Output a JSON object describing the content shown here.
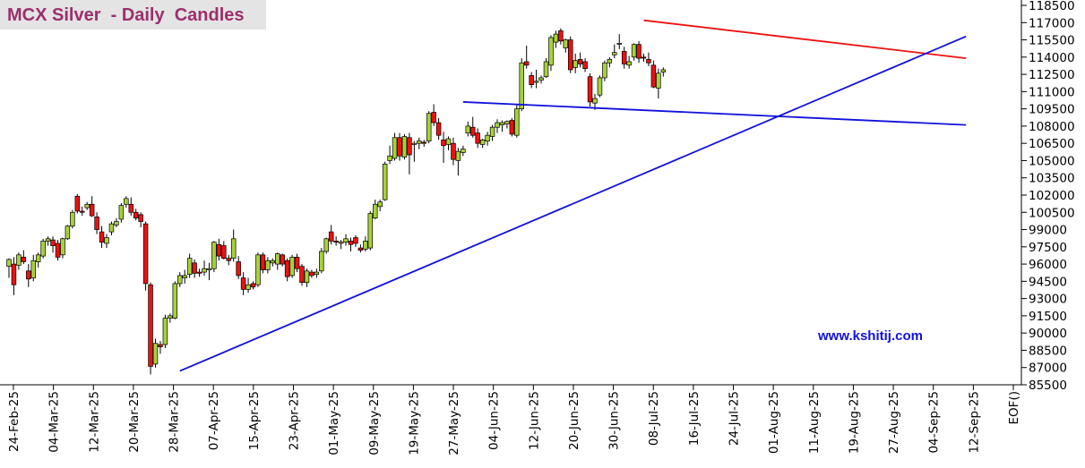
{
  "chart_data": {
    "type": "candlestick",
    "title": "MCX Silver  - Daily  Candles",
    "watermark": "www.kshitij.com",
    "ylim": [
      85500,
      118500
    ],
    "y_ticks": [
      85500,
      87000,
      88500,
      90000,
      91500,
      93000,
      94500,
      96000,
      97500,
      99000,
      100500,
      102000,
      103500,
      105000,
      106500,
      108000,
      109500,
      111000,
      112500,
      114000,
      115500,
      117000,
      118500
    ],
    "x_tick_labels": [
      "24-Feb-25",
      "04-Mar-25",
      "12-Mar-25",
      "20-Mar-25",
      "28-Mar-25",
      "07-Apr-25",
      "15-Apr-25",
      "23-Apr-25",
      "01-May-25",
      "09-May-25",
      "19-May-25",
      "27-May-25",
      "04-Jun-25",
      "12-Jun-25",
      "20-Jun-25",
      "30-Jun-25",
      "08-Jul-25",
      "16-Jul-25",
      "24-Jul-25",
      "01-Aug-25",
      "11-Aug-25",
      "19-Aug-25",
      "27-Aug-25",
      "04-Sep-25",
      "12-Sep-25",
      "EOF()"
    ],
    "colors": {
      "up": "#a6d23a",
      "down": "#ee1111",
      "outline": "#000000",
      "resistance": "#ee1111",
      "channel": "#1111dd",
      "grid": "#000000"
    },
    "trendlines": [
      {
        "color": "red",
        "from": {
          "bar": 130,
          "price": 117200
        },
        "to": {
          "bar": 196,
          "price": 113900
        }
      },
      {
        "color": "blue",
        "from": {
          "bar": 93,
          "price": 110100
        },
        "to": {
          "bar": 196,
          "price": 108100
        }
      },
      {
        "color": "blue",
        "from": {
          "bar": 35,
          "price": 86700
        },
        "to": {
          "bar": 196,
          "price": 115800
        }
      }
    ],
    "candles": [
      {
        "o": 95800,
        "h": 96500,
        "l": 94800,
        "c": 96400
      },
      {
        "o": 96000,
        "h": 96600,
        "l": 93300,
        "c": 94200
      },
      {
        "o": 95900,
        "h": 97000,
        "l": 95500,
        "c": 96800
      },
      {
        "o": 96600,
        "h": 97200,
        "l": 96000,
        "c": 96200
      },
      {
        "o": 95400,
        "h": 96000,
        "l": 94000,
        "c": 94700
      },
      {
        "o": 94800,
        "h": 96800,
        "l": 94500,
        "c": 96300
      },
      {
        "o": 96200,
        "h": 97000,
        "l": 95700,
        "c": 96800
      },
      {
        "o": 96700,
        "h": 98200,
        "l": 96500,
        "c": 98000
      },
      {
        "o": 98000,
        "h": 98400,
        "l": 97600,
        "c": 98200
      },
      {
        "o": 98100,
        "h": 98400,
        "l": 97000,
        "c": 97600
      },
      {
        "o": 97800,
        "h": 98100,
        "l": 96300,
        "c": 96600
      },
      {
        "o": 96800,
        "h": 98300,
        "l": 96500,
        "c": 98200
      },
      {
        "o": 98200,
        "h": 99400,
        "l": 98100,
        "c": 99300
      },
      {
        "o": 99300,
        "h": 100700,
        "l": 99100,
        "c": 100500
      },
      {
        "o": 101900,
        "h": 102100,
        "l": 100400,
        "c": 100600
      },
      {
        "o": 100600,
        "h": 101000,
        "l": 100200,
        "c": 100500
      },
      {
        "o": 100900,
        "h": 101400,
        "l": 100700,
        "c": 101200
      },
      {
        "o": 101200,
        "h": 101900,
        "l": 100100,
        "c": 100200
      },
      {
        "o": 100100,
        "h": 100500,
        "l": 98600,
        "c": 99000
      },
      {
        "o": 98800,
        "h": 99300,
        "l": 97400,
        "c": 97900
      },
      {
        "o": 97800,
        "h": 98600,
        "l": 97400,
        "c": 98300
      },
      {
        "o": 98800,
        "h": 99700,
        "l": 98500,
        "c": 99500
      },
      {
        "o": 99400,
        "h": 100000,
        "l": 99200,
        "c": 99700
      },
      {
        "o": 99900,
        "h": 101300,
        "l": 99600,
        "c": 101100
      },
      {
        "o": 101200,
        "h": 101900,
        "l": 100900,
        "c": 101700
      },
      {
        "o": 101200,
        "h": 101800,
        "l": 100200,
        "c": 100500
      },
      {
        "o": 100500,
        "h": 100800,
        "l": 99800,
        "c": 100000
      },
      {
        "o": 100300,
        "h": 100500,
        "l": 99200,
        "c": 99700
      },
      {
        "o": 99500,
        "h": 99700,
        "l": 93700,
        "c": 94300
      },
      {
        "o": 94200,
        "h": 94400,
        "l": 86400,
        "c": 87100
      },
      {
        "o": 87300,
        "h": 89500,
        "l": 87000,
        "c": 89100
      },
      {
        "o": 89000,
        "h": 89300,
        "l": 88200,
        "c": 88800
      },
      {
        "o": 89000,
        "h": 91600,
        "l": 88700,
        "c": 91300
      },
      {
        "o": 91300,
        "h": 91700,
        "l": 90900,
        "c": 91500
      },
      {
        "o": 91300,
        "h": 94500,
        "l": 91200,
        "c": 94300
      },
      {
        "o": 94300,
        "h": 95300,
        "l": 94000,
        "c": 95000
      },
      {
        "o": 94800,
        "h": 95500,
        "l": 94300,
        "c": 95000
      },
      {
        "o": 95100,
        "h": 96900,
        "l": 94800,
        "c": 96500
      },
      {
        "o": 96100,
        "h": 96400,
        "l": 94800,
        "c": 95200
      },
      {
        "o": 95300,
        "h": 95600,
        "l": 94900,
        "c": 95200
      },
      {
        "o": 95300,
        "h": 96300,
        "l": 95000,
        "c": 95600
      },
      {
        "o": 95500,
        "h": 96100,
        "l": 94600,
        "c": 95600
      },
      {
        "o": 95600,
        "h": 98000,
        "l": 95300,
        "c": 97900
      },
      {
        "o": 97700,
        "h": 98200,
        "l": 96300,
        "c": 96700
      },
      {
        "o": 97600,
        "h": 98000,
        "l": 96400,
        "c": 96500
      },
      {
        "o": 96500,
        "h": 96800,
        "l": 95900,
        "c": 96300
      },
      {
        "o": 96500,
        "h": 99000,
        "l": 96200,
        "c": 98200
      },
      {
        "o": 96200,
        "h": 96700,
        "l": 94700,
        "c": 95000
      },
      {
        "o": 94800,
        "h": 95300,
        "l": 93300,
        "c": 93800
      },
      {
        "o": 93800,
        "h": 94800,
        "l": 93500,
        "c": 94200
      },
      {
        "o": 94300,
        "h": 94500,
        "l": 93800,
        "c": 94000
      },
      {
        "o": 94200,
        "h": 97000,
        "l": 94000,
        "c": 96800
      },
      {
        "o": 96800,
        "h": 97000,
        "l": 95200,
        "c": 95500
      },
      {
        "o": 95500,
        "h": 96600,
        "l": 95200,
        "c": 96300
      },
      {
        "o": 96100,
        "h": 96500,
        "l": 95800,
        "c": 96300
      },
      {
        "o": 96000,
        "h": 97000,
        "l": 95500,
        "c": 96900
      },
      {
        "o": 96800,
        "h": 96900,
        "l": 95800,
        "c": 96000
      },
      {
        "o": 96300,
        "h": 96500,
        "l": 94500,
        "c": 94900
      },
      {
        "o": 95000,
        "h": 96800,
        "l": 94800,
        "c": 96600
      },
      {
        "o": 96600,
        "h": 96900,
        "l": 95300,
        "c": 95600
      },
      {
        "o": 95800,
        "h": 96000,
        "l": 94100,
        "c": 94400
      },
      {
        "o": 94400,
        "h": 95600,
        "l": 94000,
        "c": 95400
      },
      {
        "o": 95300,
        "h": 95500,
        "l": 94800,
        "c": 95000
      },
      {
        "o": 95100,
        "h": 95600,
        "l": 94800,
        "c": 95300
      },
      {
        "o": 95400,
        "h": 97400,
        "l": 95200,
        "c": 97100
      },
      {
        "o": 97100,
        "h": 98300,
        "l": 96900,
        "c": 98200
      },
      {
        "o": 98800,
        "h": 99400,
        "l": 97700,
        "c": 98000
      },
      {
        "o": 98000,
        "h": 98400,
        "l": 97600,
        "c": 97900
      },
      {
        "o": 97800,
        "h": 98100,
        "l": 97300,
        "c": 97900
      },
      {
        "o": 97900,
        "h": 98600,
        "l": 97600,
        "c": 98200
      },
      {
        "o": 98000,
        "h": 98300,
        "l": 97100,
        "c": 97700
      },
      {
        "o": 98300,
        "h": 98500,
        "l": 97500,
        "c": 97800
      },
      {
        "o": 97400,
        "h": 97700,
        "l": 97000,
        "c": 97200
      },
      {
        "o": 97300,
        "h": 98400,
        "l": 97100,
        "c": 98000
      },
      {
        "o": 97400,
        "h": 100600,
        "l": 97200,
        "c": 100400
      },
      {
        "o": 100000,
        "h": 101600,
        "l": 99900,
        "c": 101200
      },
      {
        "o": 101000,
        "h": 101600,
        "l": 100600,
        "c": 101400
      },
      {
        "o": 101600,
        "h": 104900,
        "l": 101500,
        "c": 104700
      },
      {
        "o": 105000,
        "h": 106300,
        "l": 104700,
        "c": 105400
      },
      {
        "o": 105200,
        "h": 107400,
        "l": 105000,
        "c": 107000
      },
      {
        "o": 107000,
        "h": 107400,
        "l": 105000,
        "c": 105400
      },
      {
        "o": 105300,
        "h": 107300,
        "l": 105100,
        "c": 107100
      },
      {
        "o": 107000,
        "h": 107400,
        "l": 103800,
        "c": 105500
      },
      {
        "o": 106400,
        "h": 106700,
        "l": 104900,
        "c": 106500
      },
      {
        "o": 106500,
        "h": 107000,
        "l": 106000,
        "c": 106700
      },
      {
        "o": 106600,
        "h": 106800,
        "l": 106200,
        "c": 106500
      },
      {
        "o": 106700,
        "h": 109300,
        "l": 106500,
        "c": 109100
      },
      {
        "o": 109200,
        "h": 109900,
        "l": 108000,
        "c": 108300
      },
      {
        "o": 108300,
        "h": 108700,
        "l": 106800,
        "c": 107200
      },
      {
        "o": 106800,
        "h": 107500,
        "l": 104800,
        "c": 106300
      },
      {
        "o": 106400,
        "h": 107100,
        "l": 105900,
        "c": 106900
      },
      {
        "o": 106500,
        "h": 107000,
        "l": 104600,
        "c": 105100
      },
      {
        "o": 105000,
        "h": 106100,
        "l": 103700,
        "c": 105800
      },
      {
        "o": 105700,
        "h": 106300,
        "l": 105400,
        "c": 106000
      },
      {
        "o": 107400,
        "h": 108400,
        "l": 107100,
        "c": 108000
      },
      {
        "o": 107900,
        "h": 108800,
        "l": 107000,
        "c": 107200
      },
      {
        "o": 107400,
        "h": 107800,
        "l": 106100,
        "c": 106500
      },
      {
        "o": 106400,
        "h": 106900,
        "l": 106100,
        "c": 106800
      },
      {
        "o": 106700,
        "h": 107500,
        "l": 106300,
        "c": 107200
      },
      {
        "o": 107100,
        "h": 108100,
        "l": 106700,
        "c": 107900
      },
      {
        "o": 107900,
        "h": 108600,
        "l": 107400,
        "c": 108300
      },
      {
        "o": 108100,
        "h": 108500,
        "l": 107500,
        "c": 108300
      },
      {
        "o": 108200,
        "h": 108500,
        "l": 107800,
        "c": 108400
      },
      {
        "o": 108500,
        "h": 108700,
        "l": 107100,
        "c": 107300
      },
      {
        "o": 107200,
        "h": 109900,
        "l": 107000,
        "c": 109500
      },
      {
        "o": 109500,
        "h": 113900,
        "l": 109300,
        "c": 113500
      },
      {
        "o": 113600,
        "h": 115000,
        "l": 113000,
        "c": 113300
      },
      {
        "o": 112400,
        "h": 112700,
        "l": 111300,
        "c": 111600
      },
      {
        "o": 111800,
        "h": 112900,
        "l": 111300,
        "c": 111900
      },
      {
        "o": 112000,
        "h": 112400,
        "l": 111700,
        "c": 112200
      },
      {
        "o": 112300,
        "h": 113900,
        "l": 112200,
        "c": 113600
      },
      {
        "o": 113300,
        "h": 115900,
        "l": 112800,
        "c": 115700
      },
      {
        "o": 115300,
        "h": 116300,
        "l": 114800,
        "c": 116000
      },
      {
        "o": 116300,
        "h": 116500,
        "l": 115100,
        "c": 115400
      },
      {
        "o": 114800,
        "h": 115600,
        "l": 114400,
        "c": 115500
      },
      {
        "o": 115500,
        "h": 115800,
        "l": 112600,
        "c": 112900
      },
      {
        "o": 113100,
        "h": 114300,
        "l": 112600,
        "c": 113700
      },
      {
        "o": 113800,
        "h": 114400,
        "l": 113100,
        "c": 113400
      },
      {
        "o": 113600,
        "h": 113900,
        "l": 112700,
        "c": 113000
      },
      {
        "o": 112300,
        "h": 112600,
        "l": 109700,
        "c": 110100
      },
      {
        "o": 110000,
        "h": 110800,
        "l": 109400,
        "c": 110400
      },
      {
        "o": 110700,
        "h": 112400,
        "l": 110500,
        "c": 112200
      },
      {
        "o": 112200,
        "h": 113700,
        "l": 111900,
        "c": 113500
      },
      {
        "o": 113500,
        "h": 114000,
        "l": 113100,
        "c": 113800
      },
      {
        "o": 114200,
        "h": 115100,
        "l": 113900,
        "c": 114400
      },
      {
        "o": 115200,
        "h": 116000,
        "l": 114700,
        "c": 115200
      },
      {
        "o": 114500,
        "h": 114900,
        "l": 113000,
        "c": 113400
      },
      {
        "o": 113300,
        "h": 114100,
        "l": 113000,
        "c": 113600
      },
      {
        "o": 114000,
        "h": 115200,
        "l": 113700,
        "c": 115100
      },
      {
        "o": 115100,
        "h": 115400,
        "l": 113500,
        "c": 113900
      },
      {
        "o": 114000,
        "h": 114300,
        "l": 113600,
        "c": 113900
      },
      {
        "o": 113800,
        "h": 114400,
        "l": 113200,
        "c": 113500
      },
      {
        "o": 113300,
        "h": 113700,
        "l": 111300,
        "c": 111400
      },
      {
        "o": 111300,
        "h": 113000,
        "l": 110400,
        "c": 112600
      },
      {
        "o": 112700,
        "h": 113100,
        "l": 112300,
        "c": 112900
      }
    ]
  }
}
